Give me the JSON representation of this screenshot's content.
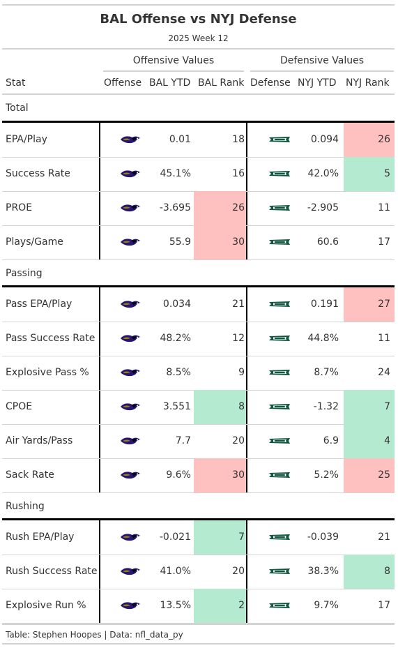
{
  "title": "BAL Offense vs NYJ Defense",
  "subtitle": "2025 Week 12",
  "spanners": {
    "offense": "Offensive Values",
    "defense": "Defensive Values"
  },
  "columns": [
    "Stat",
    "Offense",
    "BAL YTD",
    "BAL Rank",
    "Defense",
    "NYJ YTD",
    "NYJ Rank"
  ],
  "colors": {
    "good": "#b3ead0",
    "bad": "#ffc0c0",
    "ravens_purple": "#241773",
    "jets_green": "#125740"
  },
  "icons": {
    "offense": "ravens-logo-icon",
    "defense": "jets-logo-icon"
  },
  "sections": [
    {
      "label": "Total",
      "rows": [
        {
          "stat": "EPA/Play",
          "bal_ytd": "0.01",
          "bal_rank": "18",
          "bal_rank_color": "",
          "nyj_ytd": "0.094",
          "nyj_rank": "26",
          "nyj_rank_color": "bad"
        },
        {
          "stat": "Success Rate",
          "bal_ytd": "45.1%",
          "bal_rank": "16",
          "bal_rank_color": "",
          "nyj_ytd": "42.0%",
          "nyj_rank": "5",
          "nyj_rank_color": "good"
        },
        {
          "stat": "PROE",
          "bal_ytd": "-3.695",
          "bal_rank": "26",
          "bal_rank_color": "bad",
          "nyj_ytd": "-2.905",
          "nyj_rank": "11",
          "nyj_rank_color": ""
        },
        {
          "stat": "Plays/Game",
          "bal_ytd": "55.9",
          "bal_rank": "30",
          "bal_rank_color": "bad",
          "nyj_ytd": "60.6",
          "nyj_rank": "17",
          "nyj_rank_color": ""
        }
      ]
    },
    {
      "label": "Passing",
      "rows": [
        {
          "stat": "Pass EPA/Play",
          "bal_ytd": "0.034",
          "bal_rank": "21",
          "bal_rank_color": "",
          "nyj_ytd": "0.191",
          "nyj_rank": "27",
          "nyj_rank_color": "bad"
        },
        {
          "stat": "Pass Success Rate",
          "bal_ytd": "48.2%",
          "bal_rank": "12",
          "bal_rank_color": "",
          "nyj_ytd": "44.8%",
          "nyj_rank": "11",
          "nyj_rank_color": ""
        },
        {
          "stat": "Explosive Pass %",
          "bal_ytd": "8.5%",
          "bal_rank": "9",
          "bal_rank_color": "",
          "nyj_ytd": "8.7%",
          "nyj_rank": "24",
          "nyj_rank_color": ""
        },
        {
          "stat": "CPOE",
          "bal_ytd": "3.551",
          "bal_rank": "8",
          "bal_rank_color": "good",
          "nyj_ytd": "-1.32",
          "nyj_rank": "7",
          "nyj_rank_color": "good"
        },
        {
          "stat": "Air Yards/Pass",
          "bal_ytd": "7.7",
          "bal_rank": "20",
          "bal_rank_color": "",
          "nyj_ytd": "6.9",
          "nyj_rank": "4",
          "nyj_rank_color": "good"
        },
        {
          "stat": "Sack Rate",
          "bal_ytd": "9.6%",
          "bal_rank": "30",
          "bal_rank_color": "bad",
          "nyj_ytd": "5.2%",
          "nyj_rank": "25",
          "nyj_rank_color": "bad"
        }
      ]
    },
    {
      "label": "Rushing",
      "rows": [
        {
          "stat": "Rush EPA/Play",
          "bal_ytd": "-0.021",
          "bal_rank": "7",
          "bal_rank_color": "good",
          "nyj_ytd": "-0.039",
          "nyj_rank": "21",
          "nyj_rank_color": ""
        },
        {
          "stat": "Rush Success Rate",
          "bal_ytd": "41.0%",
          "bal_rank": "20",
          "bal_rank_color": "",
          "nyj_ytd": "38.3%",
          "nyj_rank": "8",
          "nyj_rank_color": "good"
        },
        {
          "stat": "Explosive Run %",
          "bal_ytd": "13.5%",
          "bal_rank": "2",
          "bal_rank_color": "good",
          "nyj_ytd": "9.7%",
          "nyj_rank": "17",
          "nyj_rank_color": ""
        }
      ]
    }
  ],
  "caption": "Table: Stephen Hoopes | Data: nfl_data_py",
  "chart_data": {
    "type": "table",
    "title": "BAL Offense vs NYJ Defense",
    "subtitle": "2025 Week 12",
    "columns": [
      "Stat",
      "Offense",
      "BAL YTD",
      "BAL Rank",
      "Defense",
      "NYJ YTD",
      "NYJ Rank"
    ],
    "groups": [
      {
        "name": "Total",
        "rows": [
          [
            "EPA/Play",
            0.01,
            18,
            0.094,
            26
          ],
          [
            "Success Rate",
            "45.1%",
            16,
            "42.0%",
            5
          ],
          [
            "PROE",
            -3.695,
            26,
            -2.905,
            11
          ],
          [
            "Plays/Game",
            55.9,
            30,
            60.6,
            17
          ]
        ]
      },
      {
        "name": "Passing",
        "rows": [
          [
            "Pass EPA/Play",
            0.034,
            21,
            0.191,
            27
          ],
          [
            "Pass Success Rate",
            "48.2%",
            12,
            "44.8%",
            11
          ],
          [
            "Explosive Pass %",
            "8.5%",
            9,
            "8.7%",
            24
          ],
          [
            "CPOE",
            3.551,
            8,
            -1.32,
            7
          ],
          [
            "Air Yards/Pass",
            7.7,
            20,
            6.9,
            4
          ],
          [
            "Sack Rate",
            "9.6%",
            30,
            "5.2%",
            25
          ]
        ]
      },
      {
        "name": "Rushing",
        "rows": [
          [
            "Rush EPA/Play",
            -0.021,
            7,
            -0.039,
            21
          ],
          [
            "Rush Success Rate",
            "41.0%",
            20,
            "38.3%",
            8
          ],
          [
            "Explosive Run %",
            "13.5%",
            2,
            "9.7%",
            17
          ]
        ]
      }
    ]
  }
}
